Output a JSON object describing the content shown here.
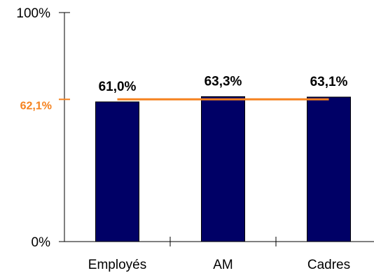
{
  "chart_data": {
    "type": "bar",
    "categories": [
      "Employés",
      "AM",
      "Cadres"
    ],
    "values": [
      61.0,
      63.3,
      63.1
    ],
    "data_labels": [
      "61,0%",
      "63,3%",
      "63,1%"
    ],
    "ylim": [
      0,
      100
    ],
    "y_ticks": [
      "0%",
      "100%"
    ],
    "reference_line": {
      "value": 62.1,
      "label": "62,1%",
      "color": "#f5821f"
    },
    "bar_color": "#000066",
    "grid": false,
    "legend": "none"
  }
}
